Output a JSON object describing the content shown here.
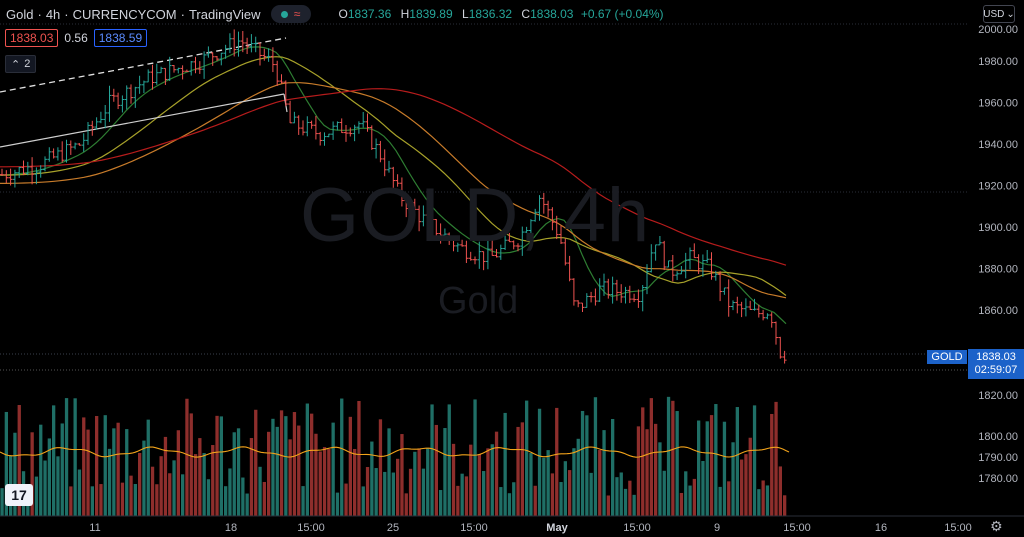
{
  "header": {
    "symbol": "Gold",
    "interval": "4h",
    "exchange": "CURRENCYCOM",
    "platform": "TradingView",
    "ohlc": {
      "o_label": "O",
      "o_value": "1837.36",
      "h_label": "H",
      "h_value": "1839.89",
      "l_label": "L",
      "l_value": "1836.32",
      "c_label": "C",
      "c_value": "1838.03",
      "change": "+0.67 (+0.04%)"
    }
  },
  "trade": {
    "sell_price": "1838.03",
    "spread": "0.56",
    "buy_price": "1838.59"
  },
  "indicator_toggle": {
    "label": "2"
  },
  "currency": {
    "label": "USD"
  },
  "watermark": {
    "line1": "GOLD, 4h",
    "line2": "Gold"
  },
  "price_tag": {
    "symbol": "GOLD",
    "price": "1838.03",
    "countdown": "02:59:07"
  },
  "logo": {
    "text": "17"
  },
  "colors": {
    "up": "#26a69a",
    "down": "#ef5350",
    "ma_green": "#2e7d32",
    "ma_yellow": "#a7a12a",
    "ma_orange": "#c77b2a",
    "ma_red": "#b71c1c",
    "accent": "#2962ff"
  },
  "chart_data": {
    "type": "candlestick",
    "y_axis": {
      "ticks": [
        "1980.00",
        "1960.00",
        "1940.00",
        "1920.00",
        "1900.00",
        "1880.00",
        "1860.00",
        "1820.00",
        "1800.00",
        "1790.00",
        "1780.00"
      ]
    },
    "x_axis": {
      "ticks": [
        "11",
        "18",
        "15:00",
        "25",
        "15:00",
        "May",
        "15:00",
        "9",
        "15:00",
        "16",
        "15:00"
      ]
    },
    "last_price": 1838.03
  }
}
